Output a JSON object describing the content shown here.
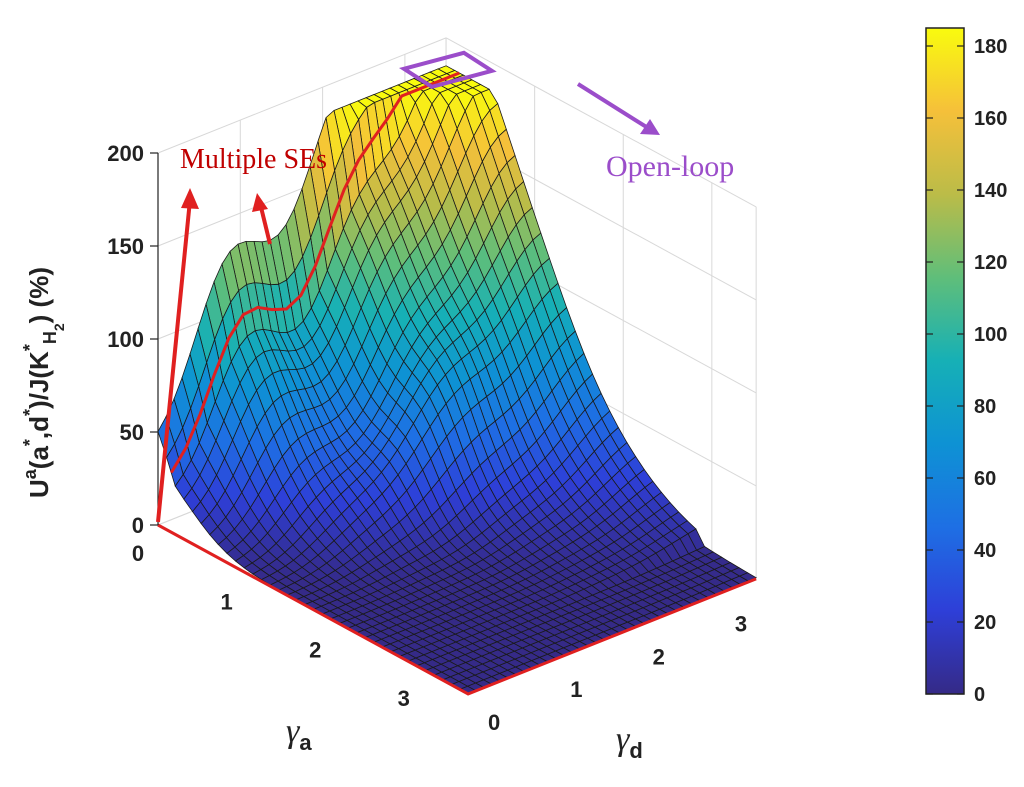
{
  "chart_data": {
    "type": "surface",
    "z_axis": {
      "label_parts": [
        "U",
        "a",
        "(a",
        "*",
        ",d",
        "*",
        ")/J(K",
        "*",
        "H",
        "2",
        ") (%)"
      ],
      "ticks": [
        0,
        50,
        100,
        150,
        200
      ],
      "range": [
        0,
        200
      ]
    },
    "x_axis": {
      "symbol": "γ",
      "subscript": "a",
      "ticks": [
        0,
        1,
        2,
        3
      ],
      "range": [
        0,
        3.5
      ]
    },
    "y_axis": {
      "symbol": "γ",
      "subscript": "d",
      "ticks": [
        0,
        1,
        2,
        3
      ],
      "range": [
        0,
        3.5
      ]
    },
    "colorbar": {
      "ticks": [
        0,
        20,
        40,
        60,
        80,
        100,
        120,
        140,
        160,
        180
      ],
      "range": [
        0,
        185
      ],
      "colormap": "parula"
    },
    "grid": true,
    "annotations": [
      {
        "text": "Multiple SEs",
        "color": "#c00000"
      },
      {
        "text": "Open-loop",
        "color": "#9b4dca"
      }
    ],
    "notes_on_surface": {
      "peak_value": 185,
      "peak_at": {
        "gamma_a": 0,
        "gamma_d": 3.5
      },
      "zero_region": "gamma_a above roughly 0.3 at low gamma_d, near zero across the front"
    }
  }
}
